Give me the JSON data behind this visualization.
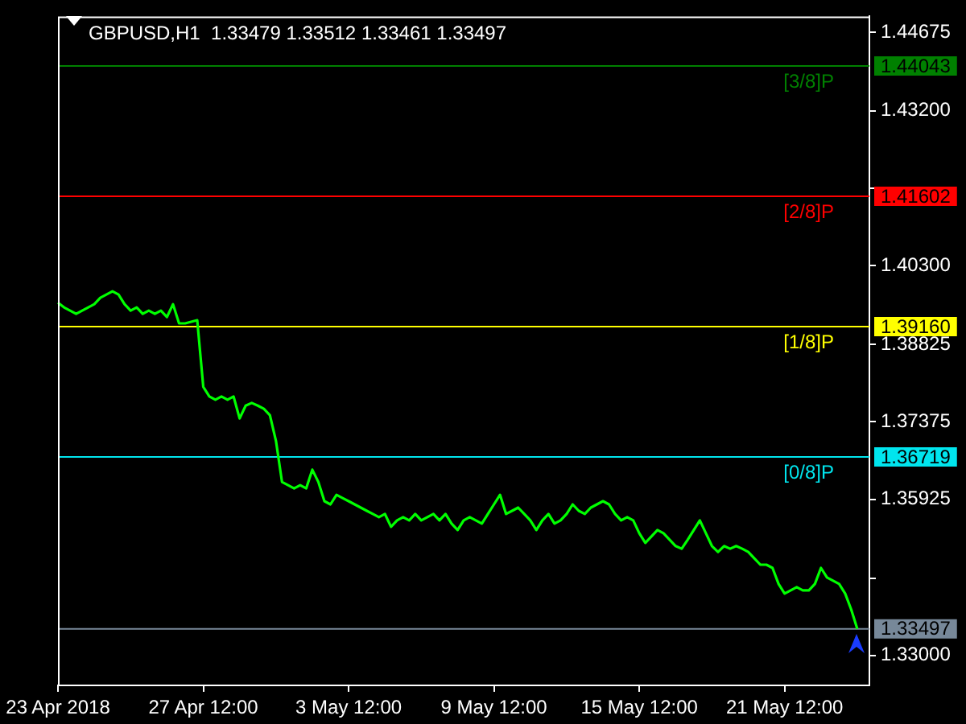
{
  "chart_data": {
    "type": "line",
    "title": "GBPUSD,H1  1.33479 1.33512 1.33461 1.33497",
    "categories": [
      "23 Apr 2018",
      null,
      null,
      null,
      null,
      null,
      null,
      null,
      null,
      null,
      null,
      null,
      null,
      null,
      null,
      null,
      null,
      null,
      null,
      null,
      null,
      null,
      null,
      null,
      "27 Apr 12:00",
      null,
      null,
      null,
      null,
      null,
      null,
      null,
      null,
      null,
      null,
      null,
      null,
      null,
      null,
      null,
      null,
      null,
      null,
      null,
      null,
      null,
      null,
      null,
      "3 May 12:00",
      null,
      null,
      null,
      null,
      null,
      null,
      null,
      null,
      null,
      null,
      null,
      null,
      null,
      null,
      null,
      null,
      null,
      null,
      null,
      null,
      null,
      null,
      null,
      "9 May 12:00",
      null,
      null,
      null,
      null,
      null,
      null,
      null,
      null,
      null,
      null,
      null,
      null,
      null,
      null,
      null,
      null,
      null,
      null,
      null,
      null,
      null,
      null,
      null,
      "15 May 12:00",
      null,
      null,
      null,
      null,
      null,
      null,
      null,
      null,
      null,
      null,
      null,
      null,
      null,
      null,
      null,
      null,
      null,
      null,
      null,
      null,
      null,
      null,
      null,
      "21 May 12:00",
      null,
      null,
      null,
      null,
      null,
      null,
      null,
      null,
      null,
      null,
      null,
      null,
      null,
      null
    ],
    "series": [
      {
        "color": "#00ff00",
        "values": [
          1.3961,
          1.3952,
          1.3946,
          1.394,
          1.3946,
          1.3952,
          1.3958,
          1.397,
          1.3976,
          1.3982,
          1.3976,
          1.3958,
          1.3946,
          1.3952,
          1.394,
          1.3946,
          1.394,
          1.3946,
          1.3934,
          1.3958,
          1.3922,
          1.3922,
          1.3925,
          1.3928,
          1.3803,
          1.3785,
          1.3779,
          1.3785,
          1.3779,
          1.3785,
          1.3744,
          1.3768,
          1.3773,
          1.3768,
          1.3762,
          1.375,
          1.3702,
          1.3625,
          1.3619,
          1.3613,
          1.3619,
          1.3613,
          1.3648,
          1.3625,
          1.3589,
          1.3583,
          1.3601,
          1.3595,
          1.3589,
          1.3583,
          1.3577,
          1.3571,
          1.3565,
          1.3559,
          1.3565,
          1.3541,
          1.3553,
          1.3559,
          1.3553,
          1.3565,
          1.3553,
          1.3559,
          1.3565,
          1.3553,
          1.3565,
          1.3547,
          1.3535,
          1.3553,
          1.3559,
          1.3553,
          1.3547,
          1.3565,
          1.3583,
          1.3601,
          1.3565,
          1.3571,
          1.3577,
          1.3565,
          1.3553,
          1.3535,
          1.3553,
          1.3565,
          1.3547,
          1.3553,
          1.3565,
          1.3583,
          1.3571,
          1.3565,
          1.3577,
          1.3583,
          1.3589,
          1.3583,
          1.3565,
          1.3553,
          1.3559,
          1.3553,
          1.3529,
          1.3511,
          1.3523,
          1.3535,
          1.3529,
          1.3517,
          1.3505,
          1.35,
          1.3517,
          1.3535,
          1.3553,
          1.3529,
          1.3505,
          1.3494,
          1.3505,
          1.35,
          1.3505,
          1.35,
          1.3494,
          1.3482,
          1.347,
          1.347,
          1.3464,
          1.3434,
          1.3416,
          1.3422,
          1.3428,
          1.3422,
          1.3422,
          1.3434,
          1.3464,
          1.3446,
          1.344,
          1.3434,
          1.3416,
          1.3386,
          1.335,
          null,
          null
        ]
      }
    ],
    "ylim": [
      1.3244,
      1.4497
    ],
    "yticks": [
      1.44675,
      {
        "value": 1.432,
        "label": "1.43200"
      },
      {
        "value": 1.4175,
        "label": null
      },
      {
        "value": 1.403,
        "label": "1.40300"
      },
      1.38825,
      1.37375,
      1.35925,
      {
        "value": 1.3445,
        "label": null
      },
      {
        "value": 1.33,
        "label": "1.33000"
      }
    ],
    "ref_lines": [
      {
        "axis": "y",
        "value": 1.44043,
        "label": "1.44043",
        "color": "#008000"
      },
      {
        "axis": "y",
        "value": 1.41602,
        "label": "1.41602",
        "color": "#ff0000"
      },
      {
        "axis": "y",
        "value": 1.3916,
        "label": "1.39160",
        "color": "#ffff00"
      },
      {
        "axis": "y",
        "value": 1.36719,
        "label": "1.36719",
        "color": "#00e5ee"
      },
      {
        "axis": "y",
        "value": 1.33497,
        "label": "1.33497",
        "color": "#778899"
      }
    ],
    "annotations": [
      {
        "text": "[3/8]P",
        "y": 1.44043
      },
      {
        "text": "[2/8]P",
        "y": 1.41602
      },
      {
        "text": "[1/8]P",
        "y": 1.3916
      },
      {
        "text": "[0/8]P",
        "y": 1.36719
      }
    ],
    "marker": "none",
    "line_style": "solid"
  }
}
